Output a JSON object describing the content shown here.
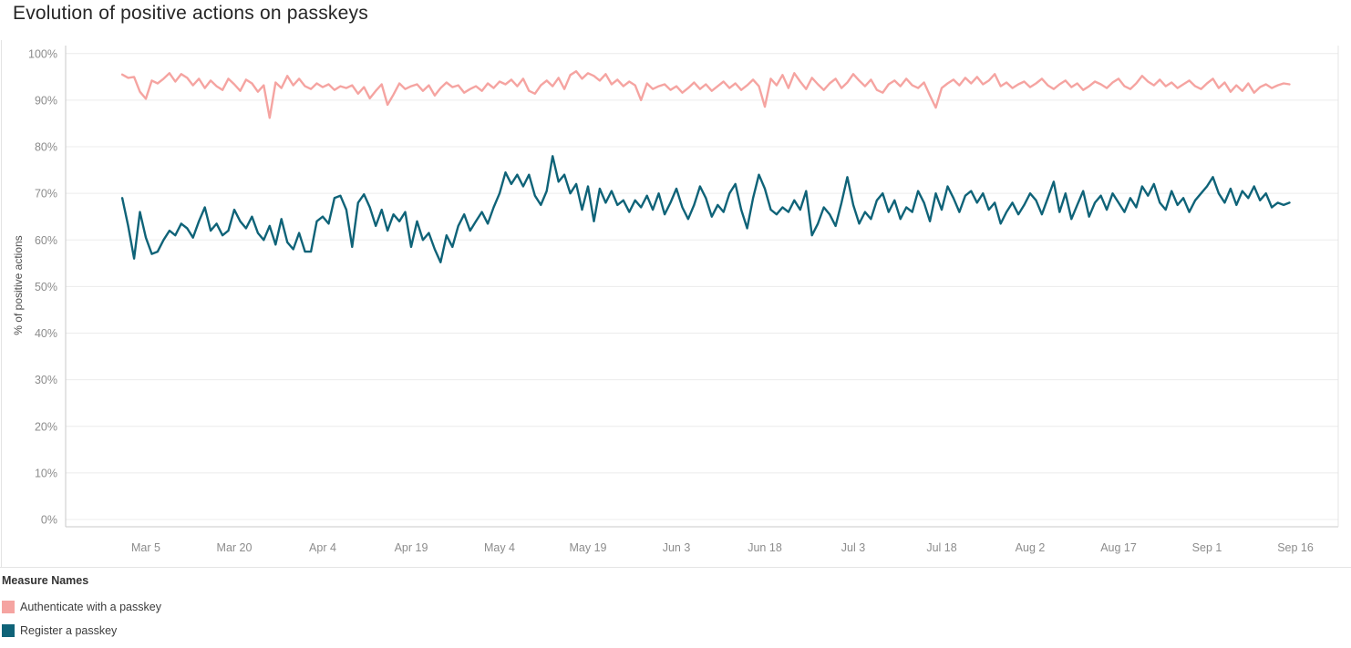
{
  "title": "Evolution of positive actions on passkeys",
  "colors": {
    "authenticate": "#f5a4a1",
    "register": "#0f6378",
    "grid": "#ececec",
    "axis": "#c9c9c9",
    "faint_border": "#e4e4e4",
    "tick_text": "#8c8c8c",
    "title_text": "#262626"
  },
  "legend": {
    "title": "Measure Names",
    "items": [
      {
        "label": "Authenticate with a passkey",
        "color": "#f5a4a1"
      },
      {
        "label": "Register a passkey",
        "color": "#0f6378"
      }
    ]
  },
  "chart_data": {
    "type": "line",
    "title": "Evolution of positive actions on passkeys",
    "xlabel": "",
    "ylabel": "% of positive actions",
    "ylim": [
      0,
      100
    ],
    "grid": "horizontal",
    "legend_position": "bottom-left",
    "x_unit": "day-index from Mar 1",
    "y_ticks": [
      {
        "value": 0,
        "label": "0%"
      },
      {
        "value": 10,
        "label": "10%"
      },
      {
        "value": 20,
        "label": "20%"
      },
      {
        "value": 30,
        "label": "30%"
      },
      {
        "value": 40,
        "label": "40%"
      },
      {
        "value": 50,
        "label": "50%"
      },
      {
        "value": 60,
        "label": "60%"
      },
      {
        "value": 70,
        "label": "70%"
      },
      {
        "value": 80,
        "label": "80%"
      },
      {
        "value": 90,
        "label": "90%"
      },
      {
        "value": 100,
        "label": "100%"
      }
    ],
    "x_ticks": [
      {
        "label": "Mar 5",
        "day": 4
      },
      {
        "label": "Mar 20",
        "day": 19
      },
      {
        "label": "Apr 4",
        "day": 34
      },
      {
        "label": "Apr 19",
        "day": 49
      },
      {
        "label": "May 4",
        "day": 64
      },
      {
        "label": "May 19",
        "day": 79
      },
      {
        "label": "Jun 3",
        "day": 94
      },
      {
        "label": "Jun 18",
        "day": 109
      },
      {
        "label": "Jul 3",
        "day": 124
      },
      {
        "label": "Jul 18",
        "day": 139
      },
      {
        "label": "Aug 2",
        "day": 154
      },
      {
        "label": "Aug 17",
        "day": 169
      },
      {
        "label": "Sep 1",
        "day": 184
      },
      {
        "label": "Sep 16",
        "day": 199
      }
    ],
    "series": [
      {
        "id": "authenticate",
        "name": "Authenticate with a passkey",
        "color": "#f5a4a1",
        "values": [
          95.5,
          94.8,
          95.0,
          91.8,
          90.3,
          94.2,
          93.6,
          94.6,
          95.8,
          94.0,
          95.6,
          94.8,
          93.2,
          94.6,
          92.6,
          94.2,
          93.0,
          92.2,
          94.6,
          93.4,
          92.0,
          94.4,
          93.6,
          91.8,
          93.2,
          86.2,
          93.8,
          92.6,
          95.2,
          93.2,
          94.6,
          93.0,
          92.4,
          93.6,
          92.8,
          93.4,
          92.2,
          93.0,
          92.6,
          93.2,
          91.4,
          92.8,
          90.4,
          92.0,
          93.4,
          89.0,
          91.2,
          93.6,
          92.4,
          93.0,
          93.4,
          92.0,
          93.2,
          91.0,
          92.6,
          93.8,
          92.8,
          93.2,
          91.6,
          92.4,
          93.0,
          92.0,
          93.6,
          92.6,
          94.0,
          93.4,
          94.4,
          93.0,
          94.6,
          92.0,
          91.4,
          93.2,
          94.2,
          93.0,
          94.8,
          92.4,
          95.4,
          96.2,
          94.6,
          95.8,
          95.2,
          94.2,
          95.6,
          93.4,
          94.4,
          93.0,
          94.0,
          93.2,
          90.0,
          93.6,
          92.4,
          93.0,
          93.4,
          92.2,
          93.0,
          91.6,
          92.6,
          93.8,
          92.4,
          93.4,
          92.0,
          93.0,
          94.0,
          92.6,
          93.6,
          92.2,
          93.2,
          94.4,
          93.0,
          88.6,
          94.6,
          93.2,
          95.4,
          92.6,
          95.8,
          94.0,
          92.4,
          94.8,
          93.4,
          92.2,
          93.6,
          94.6,
          92.6,
          93.8,
          95.6,
          94.2,
          93.0,
          94.4,
          92.2,
          91.6,
          93.4,
          94.2,
          93.0,
          94.6,
          93.2,
          92.6,
          93.8,
          91.0,
          88.4,
          92.6,
          93.6,
          94.4,
          93.2,
          94.8,
          93.6,
          95.0,
          93.4,
          94.2,
          95.6,
          93.0,
          93.8,
          92.6,
          93.4,
          94.0,
          92.8,
          93.6,
          94.6,
          93.2,
          92.4,
          93.4,
          94.2,
          92.8,
          93.6,
          92.2,
          93.0,
          94.0,
          93.4,
          92.6,
          93.8,
          94.6,
          93.0,
          92.4,
          93.6,
          95.2,
          94.0,
          93.2,
          94.4,
          93.0,
          93.8,
          92.6,
          93.4,
          94.2,
          93.0,
          92.4,
          93.6,
          94.6,
          92.6,
          93.8,
          91.8,
          93.2,
          92.0,
          93.6,
          91.6,
          92.8,
          93.4,
          92.6,
          93.2,
          93.6,
          93.4
        ]
      },
      {
        "id": "register",
        "name": "Register a passkey",
        "color": "#0f6378",
        "values": [
          69.0,
          63.0,
          56.0,
          66.0,
          60.5,
          57.0,
          57.5,
          60.0,
          62.0,
          61.0,
          63.5,
          62.5,
          60.5,
          64.0,
          67.0,
          62.0,
          63.5,
          61.0,
          62.0,
          66.5,
          64.0,
          62.5,
          65.0,
          61.5,
          60.0,
          63.0,
          59.0,
          64.5,
          59.5,
          58.0,
          61.5,
          57.5,
          57.5,
          64.0,
          65.0,
          63.5,
          69.0,
          69.5,
          66.5,
          58.5,
          68.0,
          69.8,
          67.0,
          63.0,
          66.5,
          62.0,
          65.5,
          64.0,
          66.0,
          58.5,
          64.0,
          60.0,
          61.5,
          58.0,
          55.2,
          61.0,
          58.5,
          63.0,
          65.5,
          62.0,
          64.0,
          66.0,
          63.5,
          67.0,
          70.0,
          74.5,
          72.0,
          74.0,
          71.5,
          74.0,
          69.5,
          67.5,
          70.5,
          78.0,
          72.5,
          74.0,
          70.0,
          72.0,
          66.5,
          71.5,
          64.0,
          71.0,
          68.0,
          70.5,
          67.5,
          68.5,
          66.0,
          68.5,
          67.0,
          69.5,
          66.5,
          70.0,
          65.5,
          68.0,
          71.0,
          67.0,
          64.5,
          67.5,
          71.5,
          69.0,
          65.0,
          67.5,
          66.0,
          70.0,
          72.0,
          66.5,
          62.5,
          69.0,
          74.0,
          71.0,
          66.5,
          65.5,
          67.0,
          66.0,
          68.5,
          66.5,
          70.5,
          61.0,
          63.5,
          67.0,
          65.5,
          63.0,
          68.0,
          73.5,
          67.5,
          63.5,
          66.0,
          64.5,
          68.5,
          70.0,
          66.0,
          68.5,
          64.5,
          67.0,
          66.0,
          70.5,
          68.0,
          64.0,
          70.0,
          66.5,
          71.5,
          69.0,
          66.0,
          69.5,
          70.5,
          68.0,
          70.0,
          66.5,
          68.0,
          63.5,
          66.0,
          68.0,
          65.5,
          67.5,
          70.0,
          68.5,
          65.5,
          69.0,
          72.5,
          66.0,
          70.0,
          64.5,
          67.5,
          70.5,
          65.0,
          68.0,
          69.5,
          66.5,
          70.0,
          68.0,
          66.0,
          69.0,
          67.0,
          71.5,
          69.5,
          72.0,
          68.0,
          66.5,
          70.5,
          67.5,
          69.0,
          66.0,
          68.5,
          70.0,
          71.5,
          73.5,
          70.0,
          68.0,
          71.0,
          67.5,
          70.5,
          69.0,
          71.5,
          68.5,
          70.0,
          67.0,
          68.0,
          67.5,
          68.0
        ]
      }
    ]
  }
}
